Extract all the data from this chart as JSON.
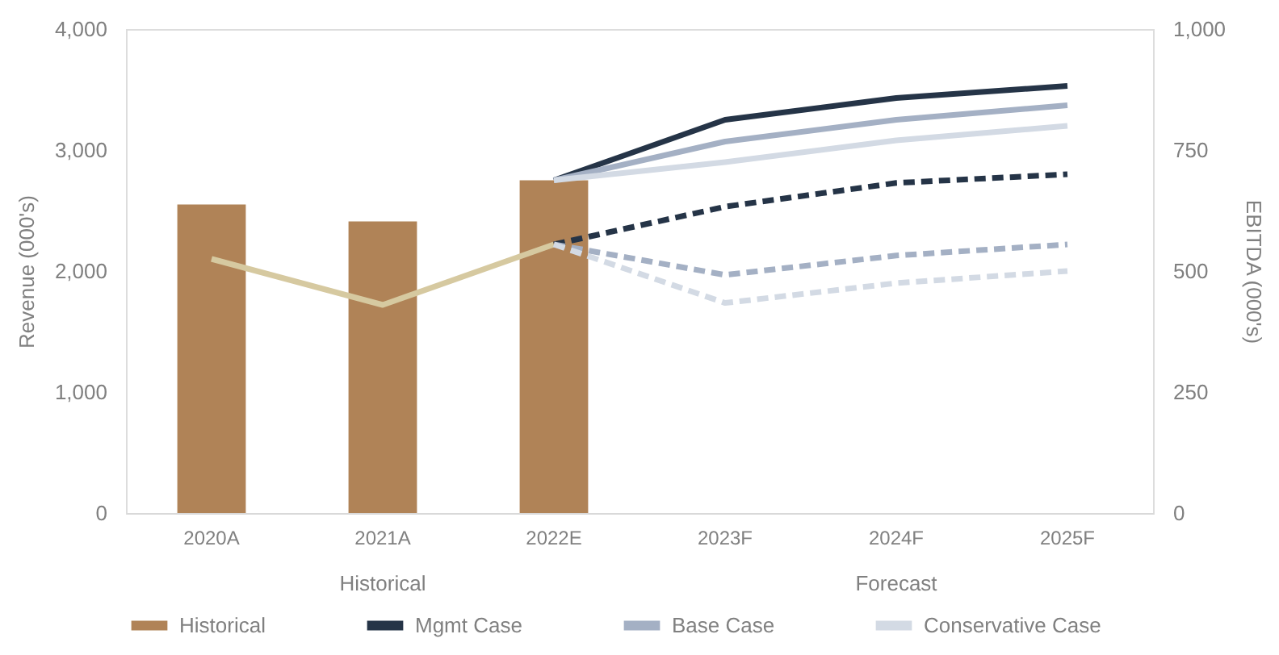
{
  "chart_data": {
    "type": "bar",
    "categories": [
      "2020A",
      "2021A",
      "2022E",
      "2023F",
      "2024F",
      "2025F"
    ],
    "ylabel": "Revenue (000's)",
    "y2label": "EBITDA (000's)",
    "ylim": [
      0,
      4000
    ],
    "yticks": [
      0,
      {
        "value": 1000,
        "label": "1,000"
      },
      {
        "value": 2000,
        "label": "2,000"
      },
      {
        "value": 3000,
        "label": "3,000"
      },
      {
        "value": 4000,
        "label": "4,000"
      }
    ],
    "y2lim": [
      0,
      1000
    ],
    "y2ticks": [
      0,
      250,
      500,
      750,
      {
        "value": 1000,
        "label": "1,000"
      }
    ],
    "series": [
      {
        "name": "Historical",
        "color": "#b08357",
        "values": [
          2550,
          2410,
          2750,
          null,
          null,
          null
        ]
      },
      {
        "type": "line",
        "axis": "y2",
        "line_style": "solid",
        "color": "#d6c9a0",
        "values": [
          525,
          430,
          555,
          null,
          null,
          null
        ]
      },
      {
        "name": "Mgmt Case",
        "type": "line",
        "line_style": "solid",
        "color": "#253447",
        "values": [
          null,
          null,
          2750,
          3250,
          3430,
          3530
        ]
      },
      {
        "name": "Base Case",
        "type": "line",
        "line_style": "solid",
        "color": "#a4b0c4",
        "values": [
          null,
          null,
          2750,
          3070,
          3250,
          3370
        ]
      },
      {
        "name": "Conservative Case",
        "type": "line",
        "line_style": "solid",
        "color": "#d3dae4",
        "values": [
          null,
          null,
          2750,
          2900,
          3080,
          3200
        ]
      },
      {
        "type": "line",
        "axis": "y2",
        "line_style": "dashed",
        "color": "#253447",
        "values": [
          null,
          null,
          555,
          633,
          682,
          700
        ]
      },
      {
        "type": "line",
        "axis": "y2",
        "line_style": "dashed",
        "color": "#a4b0c4",
        "values": [
          null,
          null,
          555,
          492,
          532,
          555
        ]
      },
      {
        "type": "line",
        "axis": "y2",
        "line_style": "dashed",
        "color": "#d3dae4",
        "values": [
          null,
          null,
          555,
          434,
          475,
          500
        ]
      }
    ],
    "annotations": [
      "Historical",
      "Forecast"
    ],
    "legend": "bottom",
    "grid": false,
    "marker": "none"
  }
}
